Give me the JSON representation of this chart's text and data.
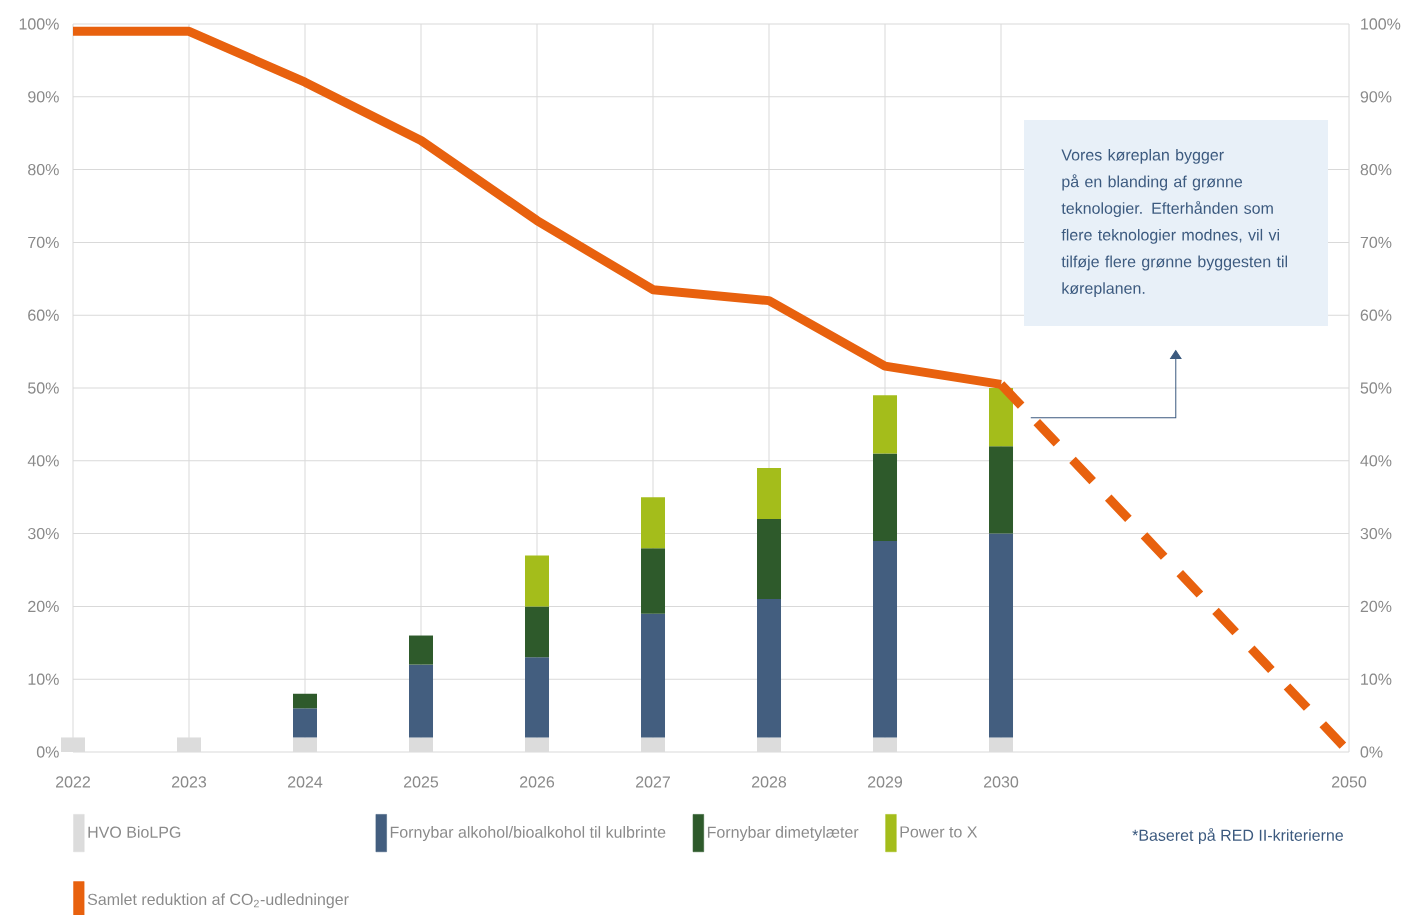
{
  "chart_data": {
    "type": "bar",
    "stacked": true,
    "categories": [
      "2022",
      "2023",
      "2024",
      "2025",
      "2026",
      "2027",
      "2028",
      "2029",
      "2030",
      null,
      null,
      "2050"
    ],
    "series": [
      {
        "name": "HVO BioLPG",
        "color": "#dcdcdc",
        "values": [
          2,
          2,
          2,
          2,
          2,
          2,
          2,
          2,
          2,
          null,
          null,
          null
        ]
      },
      {
        "name": "Fornybar alkohol/bioalkohol til kulbrinte",
        "color": "#435e7f",
        "values": [
          null,
          null,
          4,
          10,
          11,
          17,
          19,
          27,
          28,
          null,
          null,
          null
        ]
      },
      {
        "name": "Fornybar dimetylæter",
        "color": "#2e5a2b",
        "values": [
          null,
          null,
          2,
          4,
          7,
          9,
          11,
          12,
          12,
          null,
          null,
          null
        ]
      },
      {
        "name": "Power to X",
        "color": "#a4bd1b",
        "values": [
          null,
          null,
          null,
          null,
          7,
          7,
          7,
          8,
          8,
          null,
          null,
          null
        ]
      },
      {
        "name": "Samlet reduktion af CO$_{2}$-udledninger",
        "type": "line",
        "color": "#e8610e",
        "line_style": "solid",
        "values": [
          99,
          99,
          92,
          84,
          73,
          63.5,
          62,
          53,
          50.5,
          null,
          null,
          null
        ]
      },
      {
        "type": "line",
        "color": "#e8610e",
        "line_style": "dashed",
        "values": [
          null,
          null,
          null,
          null,
          null,
          null,
          null,
          null,
          50.5,
          null,
          null,
          0
        ]
      }
    ],
    "ylim": [
      0,
      100
    ],
    "yticks": [
      {
        "value": 0,
        "label": "0%"
      },
      {
        "value": 10,
        "label": "10%"
      },
      {
        "value": 20,
        "label": "20%"
      },
      {
        "value": 30,
        "label": "30%"
      },
      {
        "value": 40,
        "label": "40%"
      },
      {
        "value": 50,
        "label": "50%"
      },
      {
        "value": 60,
        "label": "60%"
      },
      {
        "value": 70,
        "label": "70%"
      },
      {
        "value": 80,
        "label": "80%"
      },
      {
        "value": 90,
        "label": "90%"
      },
      {
        "value": 100,
        "label": "100%"
      }
    ],
    "y2lim": [
      0,
      100
    ],
    "y2ticks": [
      {
        "value": 0,
        "label": "0%"
      },
      {
        "value": 10,
        "label": "10%"
      },
      {
        "value": 20,
        "label": "20%"
      },
      {
        "value": 30,
        "label": "30%"
      },
      {
        "value": 40,
        "label": "40%"
      },
      {
        "value": 50,
        "label": "50%"
      },
      {
        "value": 60,
        "label": "60%"
      },
      {
        "value": 70,
        "label": "70%"
      },
      {
        "value": 80,
        "label": "80%"
      },
      {
        "value": 90,
        "label": "90%"
      },
      {
        "value": 100,
        "label": "100%"
      }
    ],
    "grid": true,
    "legend": "bottom left",
    "marker": "none",
    "annotations": [
      "Vores køreplan bygger på en blanding af grønne teknologier. Efterhånden som flere teknologier modnes, vil vi tilføje flere grønne byggesten til køreplanen.",
      "*Baseret på RED II-kriterierne"
    ]
  }
}
